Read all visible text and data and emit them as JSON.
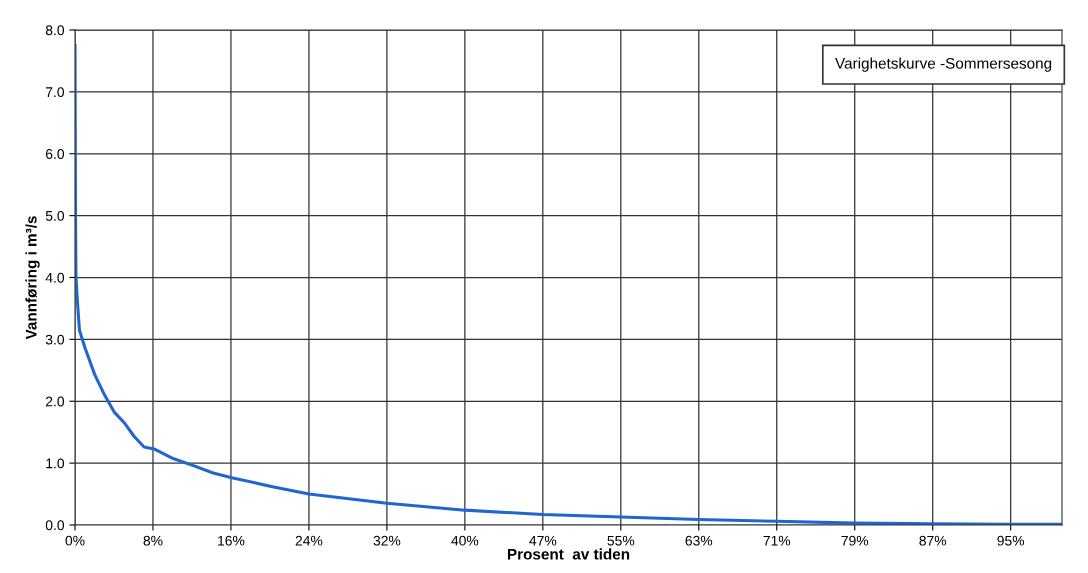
{
  "chart_data": {
    "type": "line",
    "title": "Varighetskurve -Sommersesong",
    "xlabel": "Prosent  av tiden",
    "ylabel": "Vannføring i m³/s",
    "x": [
      0,
      0.05,
      0.1,
      0.25,
      0.45,
      1,
      2,
      3,
      4,
      5,
      6,
      7,
      8,
      10,
      12,
      14,
      16,
      20,
      23.7,
      31.6,
      39.5,
      47.4,
      55.3,
      63.2,
      71.1,
      79,
      86.9,
      94.8,
      100
    ],
    "series": [
      {
        "color": "#1f66d1",
        "values": [
          7.75,
          5.0,
          4.0,
          3.6,
          3.15,
          2.87,
          2.43,
          2.1,
          1.82,
          1.65,
          1.43,
          1.26,
          1.23,
          1.07,
          0.96,
          0.84,
          0.76,
          0.62,
          0.5,
          0.35,
          0.24,
          0.17,
          0.13,
          0.09,
          0.06,
          0.03,
          0.02,
          0.01,
          0.01
        ]
      }
    ],
    "xlim": [
      0,
      100
    ],
    "xticks": [
      {
        "value": 0,
        "label": "0%"
      },
      {
        "value": 7.9,
        "label": "8%"
      },
      {
        "value": 15.8,
        "label": "16%"
      },
      {
        "value": 23.7,
        "label": "24%"
      },
      {
        "value": 31.6,
        "label": "32%"
      },
      {
        "value": 39.5,
        "label": "40%"
      },
      {
        "value": 47.4,
        "label": "47%"
      },
      {
        "value": 55.3,
        "label": "55%"
      },
      {
        "value": 63.2,
        "label": "63%"
      },
      {
        "value": 71.1,
        "label": "71%"
      },
      {
        "value": 79.0,
        "label": "79%"
      },
      {
        "value": 86.9,
        "label": "87%"
      },
      {
        "value": 94.8,
        "label": "95%"
      }
    ],
    "ylim": [
      0,
      8
    ],
    "yticks": [
      {
        "value": 0,
        "label": "0.0"
      },
      {
        "value": 1,
        "label": "1.0"
      },
      {
        "value": 2,
        "label": "2.0"
      },
      {
        "value": 3,
        "label": "3.0"
      },
      {
        "value": 4,
        "label": "4.0"
      },
      {
        "value": 5,
        "label": "5.0"
      },
      {
        "value": 6,
        "label": "6.0"
      },
      {
        "value": 7,
        "label": "7.0"
      },
      {
        "value": 8,
        "label": "8.0"
      }
    ],
    "grid": true,
    "legend": false,
    "marker": "none",
    "line_style": "solid"
  }
}
